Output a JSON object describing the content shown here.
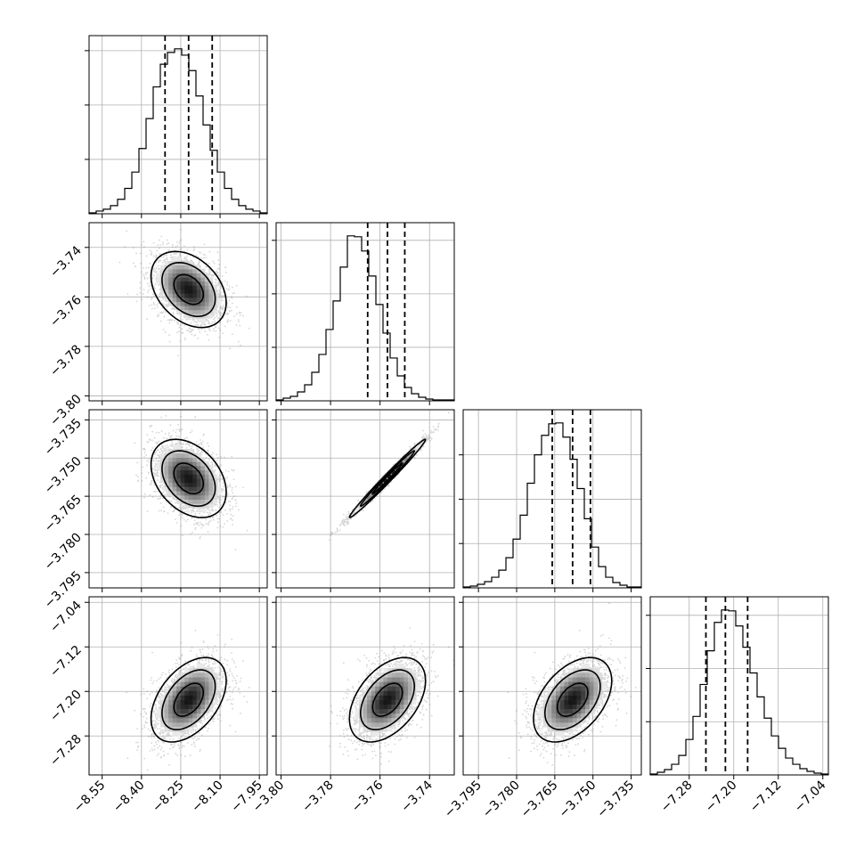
{
  "chart_data": {
    "type": "corner",
    "parameters": [
      {
        "id": "p0",
        "center": -8.22,
        "sigma": 0.07,
        "quantiles": [
          -8.31,
          -8.22,
          -8.13
        ],
        "range": [
          -8.6,
          -7.92
        ],
        "ticks": [
          "-8.55",
          "-8.40",
          "-8.25",
          "-8.10",
          "-7.95"
        ],
        "tick_values": [
          -8.55,
          -8.4,
          -8.25,
          -8.1,
          -7.95
        ]
      },
      {
        "id": "p1",
        "center": -3.757,
        "sigma": 0.0075,
        "quantiles": [
          -3.765,
          -3.757,
          -3.75
        ],
        "range": [
          -3.802,
          -3.73
        ],
        "ticks": [
          "-3.80",
          "-3.78",
          "-3.76",
          "-3.74"
        ],
        "tick_values": [
          -3.8,
          -3.78,
          -3.76,
          -3.74
        ]
      },
      {
        "id": "p2",
        "center": -3.758,
        "sigma": 0.0075,
        "quantiles": [
          -3.766,
          -3.758,
          -3.751
        ],
        "range": [
          -3.801,
          -3.731
        ],
        "ticks": [
          "-3.795",
          "-3.780",
          "-3.765",
          "-3.750",
          "-3.735"
        ],
        "tick_values": [
          -3.795,
          -3.78,
          -3.765,
          -3.75,
          -3.735
        ]
      },
      {
        "id": "p3",
        "center": -7.215,
        "sigma": 0.037,
        "quantiles": [
          -7.25,
          -7.215,
          -7.175
        ],
        "range": [
          -7.35,
          -7.03
        ],
        "ticks": [
          "-7.28",
          "-7.20",
          "-7.12",
          "-7.04"
        ],
        "tick_values": [
          -7.28,
          -7.2,
          -7.12,
          -7.04
        ]
      }
    ],
    "correlations": {
      "1,0": -0.35,
      "2,0": -0.35,
      "2,1": 0.99,
      "3,0": 0.45,
      "3,1": 0.45,
      "3,2": 0.45
    },
    "histograms": [
      [
        1,
        3,
        5,
        9,
        16,
        28,
        46,
        72,
        105,
        140,
        165,
        178,
        182,
        175,
        158,
        130,
        98,
        70,
        46,
        28,
        16,
        9,
        5,
        3,
        1
      ],
      [
        1,
        3,
        5,
        10,
        18,
        32,
        52,
        80,
        112,
        150,
        185,
        184,
        168,
        140,
        108,
        76,
        48,
        28,
        15,
        8,
        4,
        2,
        1,
        1,
        1
      ],
      [
        1,
        2,
        4,
        7,
        12,
        20,
        34,
        55,
        82,
        118,
        150,
        172,
        185,
        186,
        170,
        145,
        112,
        78,
        46,
        24,
        12,
        6,
        3,
        1,
        1
      ],
      [
        1,
        3,
        6,
        12,
        22,
        40,
        66,
        102,
        140,
        172,
        186,
        185,
        168,
        144,
        115,
        88,
        64,
        44,
        30,
        19,
        12,
        7,
        4,
        2,
        1
      ]
    ],
    "hist_grid_ticks": [
      [
        60,
        120,
        180
      ],
      [
        60,
        120,
        180
      ],
      [
        50,
        100,
        150
      ],
      [
        60,
        120,
        180
      ]
    ],
    "grid": true
  }
}
